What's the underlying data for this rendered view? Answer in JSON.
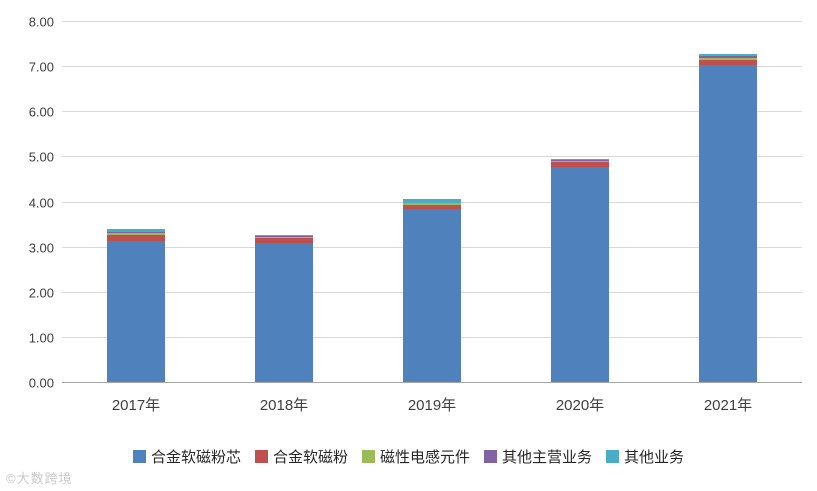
{
  "chart_data": {
    "type": "bar",
    "stacked": true,
    "title": "",
    "xlabel": "",
    "ylabel": "",
    "categories": [
      "2017年",
      "2018年",
      "2019年",
      "2020年",
      "2021年"
    ],
    "series": [
      {
        "name": "合金软磁粉芯",
        "color": "#4f81bd",
        "values": [
          3.15,
          3.1,
          3.85,
          4.78,
          7.05
        ]
      },
      {
        "name": "合金软磁粉",
        "color": "#c0504d",
        "values": [
          0.14,
          0.12,
          0.1,
          0.11,
          0.1
        ]
      },
      {
        "name": "磁性电感元件",
        "color": "#9bbb59",
        "values": [
          0.03,
          0.02,
          0.03,
          0.03,
          0.06
        ]
      },
      {
        "name": "其他主营业务",
        "color": "#8064a2",
        "values": [
          0.02,
          0.01,
          0.02,
          0.02,
          0.03
        ]
      },
      {
        "name": "其他业务",
        "color": "#4bacc6",
        "values": [
          0.08,
          0.03,
          0.07,
          0.03,
          0.06
        ]
      }
    ],
    "ylim": [
      0,
      8
    ],
    "ytick_step": 1,
    "ytick_decimals": 2,
    "grid": true,
    "legend_position": "bottom"
  },
  "watermark": "©大数跨境"
}
